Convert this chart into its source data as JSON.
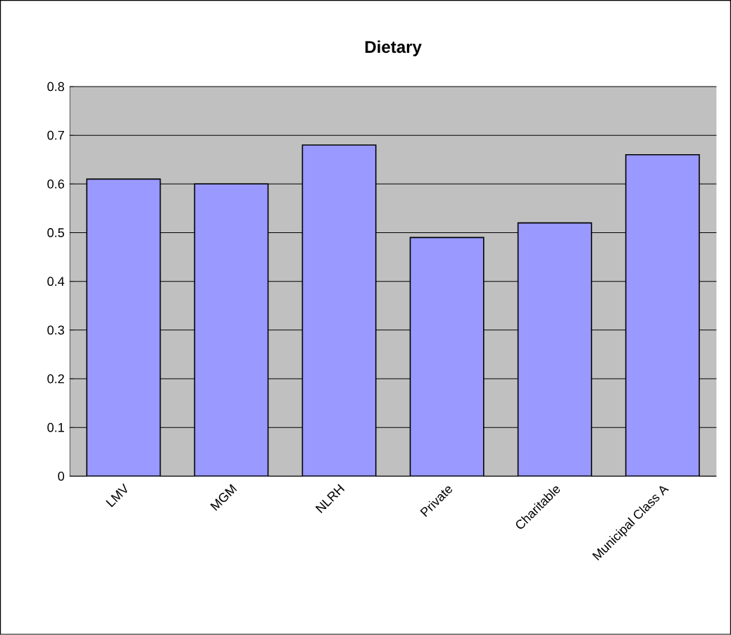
{
  "chart_data": {
    "type": "bar",
    "title": "Dietary",
    "categories": [
      "LMV",
      "MGM",
      "NLRH",
      "Private",
      "Charitable",
      "Municipal Class A"
    ],
    "values": [
      0.61,
      0.6,
      0.68,
      0.49,
      0.52,
      0.66
    ],
    "color": "#9999ff",
    "ylim": [
      0,
      0.8
    ],
    "yticks": [
      0,
      0.1,
      0.2,
      0.3,
      0.4,
      0.5,
      0.6,
      0.7,
      0.8
    ],
    "grid": "y"
  }
}
